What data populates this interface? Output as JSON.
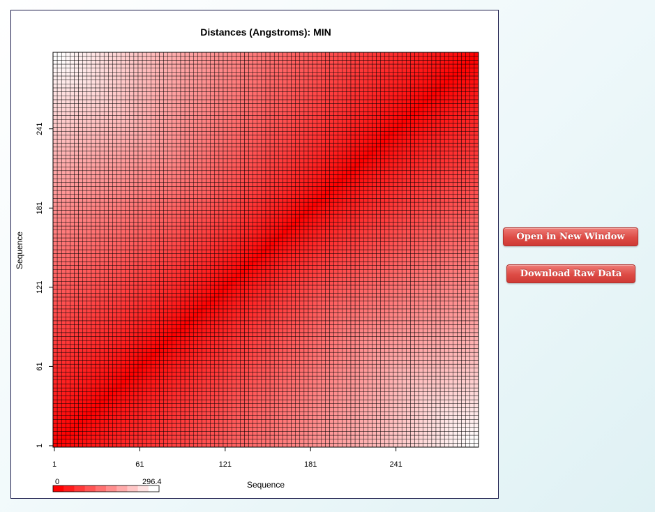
{
  "buttons": {
    "open_window": "Open in New Window",
    "download_raw": "Download Raw Data"
  },
  "chart_data": {
    "type": "heatmap",
    "title": "Distances (Angstroms):  MIN",
    "xlabel": "Sequence",
    "ylabel": "Sequence",
    "x_ticks": [
      1,
      61,
      121,
      181,
      241
    ],
    "y_ticks": [
      1,
      61,
      121,
      181,
      241
    ],
    "x_range": [
      1,
      300
    ],
    "y_range": [
      1,
      300
    ],
    "grid_cells": 100,
    "value_range": [
      0,
      296.4
    ],
    "colorbar": {
      "min_label": "0",
      "max_label": "296.4",
      "low_color": "#ff0000",
      "high_color": "#ffffff"
    },
    "pattern": "distance increases away from diagonal; minimum 0 on diagonal, maximum near corners (1,181) and (181,1)"
  }
}
